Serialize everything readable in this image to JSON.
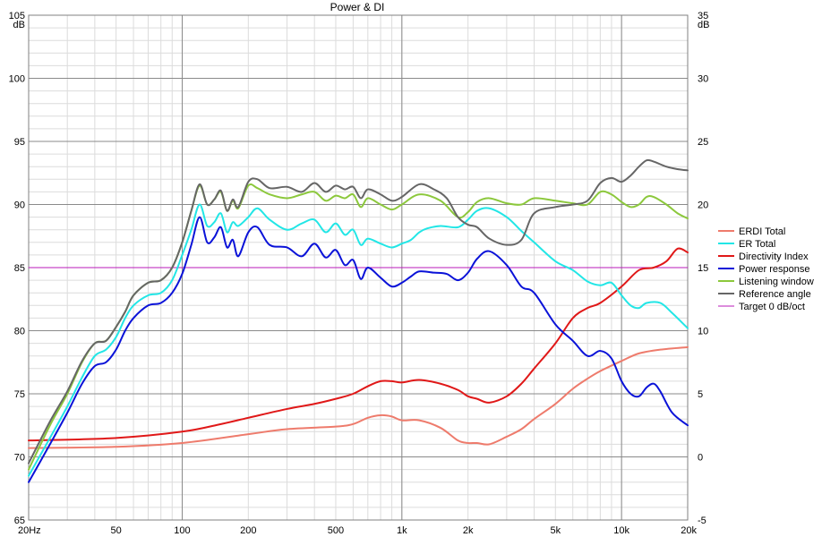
{
  "chart_data": {
    "type": "line",
    "title": "Power & DI",
    "x_scale": "log",
    "xlim": [
      20,
      20000
    ],
    "x_ticks": [
      {
        "value": 20,
        "label": "20Hz"
      },
      {
        "value": 50,
        "label": "50"
      },
      {
        "value": 100,
        "label": "100"
      },
      {
        "value": 200,
        "label": "200"
      },
      {
        "value": 500,
        "label": "500"
      },
      {
        "value": 1000,
        "label": "1k"
      },
      {
        "value": 2000,
        "label": "2k"
      },
      {
        "value": 5000,
        "label": "5k"
      },
      {
        "value": 10000,
        "label": "10k"
      },
      {
        "value": 20000,
        "label": "20k"
      }
    ],
    "left_axis": {
      "unit": "dB",
      "ylim": [
        65,
        105
      ],
      "ticks": [
        65,
        70,
        75,
        80,
        85,
        90,
        95,
        100,
        105
      ]
    },
    "right_axis": {
      "unit": "dB",
      "ylim": [
        -5,
        35
      ],
      "ticks": [
        -5,
        0,
        5,
        10,
        15,
        20,
        25,
        30,
        35
      ]
    },
    "grid": true,
    "legend_position": "right",
    "series": [
      {
        "name": "ERDI Total",
        "color": "#ee7b6c",
        "axis": "right",
        "points": [
          [
            20,
            0.7
          ],
          [
            50,
            0.8
          ],
          [
            100,
            1.1
          ],
          [
            200,
            1.8
          ],
          [
            300,
            2.2
          ],
          [
            500,
            2.4
          ],
          [
            600,
            2.6
          ],
          [
            700,
            3.1
          ],
          [
            800,
            3.3
          ],
          [
            900,
            3.2
          ],
          [
            1000,
            2.9
          ],
          [
            1200,
            2.9
          ],
          [
            1500,
            2.3
          ],
          [
            1800,
            1.3
          ],
          [
            2000,
            1.1
          ],
          [
            2200,
            1.1
          ],
          [
            2500,
            1.0
          ],
          [
            3000,
            1.6
          ],
          [
            3500,
            2.2
          ],
          [
            4000,
            3.0
          ],
          [
            5000,
            4.2
          ],
          [
            6000,
            5.4
          ],
          [
            7000,
            6.2
          ],
          [
            8000,
            6.8
          ],
          [
            10000,
            7.6
          ],
          [
            12000,
            8.2
          ],
          [
            15000,
            8.5
          ],
          [
            20000,
            8.7
          ]
        ]
      },
      {
        "name": "ER Total",
        "color": "#22e6e6",
        "axis": "left",
        "points": [
          [
            20,
            68.5
          ],
          [
            25,
            71.5
          ],
          [
            30,
            74
          ],
          [
            35,
            76.3
          ],
          [
            40,
            78
          ],
          [
            45,
            78.5
          ],
          [
            50,
            79.5
          ],
          [
            55,
            81
          ],
          [
            60,
            82
          ],
          [
            70,
            82.8
          ],
          [
            80,
            83.0
          ],
          [
            90,
            84.0
          ],
          [
            100,
            86
          ],
          [
            110,
            88
          ],
          [
            120,
            90.0
          ],
          [
            130,
            88.3
          ],
          [
            140,
            88.6
          ],
          [
            150,
            89.3
          ],
          [
            160,
            87.8
          ],
          [
            170,
            88.6
          ],
          [
            180,
            88.3
          ],
          [
            200,
            89.0
          ],
          [
            220,
            89.7
          ],
          [
            250,
            88.8
          ],
          [
            300,
            88.0
          ],
          [
            350,
            88.5
          ],
          [
            400,
            88.8
          ],
          [
            450,
            87.8
          ],
          [
            500,
            88.5
          ],
          [
            550,
            87.6
          ],
          [
            600,
            88.0
          ],
          [
            650,
            86.8
          ],
          [
            700,
            87.3
          ],
          [
            800,
            86.9
          ],
          [
            900,
            86.6
          ],
          [
            1000,
            86.9
          ],
          [
            1100,
            87.2
          ],
          [
            1200,
            87.8
          ],
          [
            1300,
            88.1
          ],
          [
            1500,
            88.3
          ],
          [
            1800,
            88.2
          ],
          [
            2000,
            88.8
          ],
          [
            2200,
            89.5
          ],
          [
            2500,
            89.7
          ],
          [
            3000,
            89.0
          ],
          [
            3500,
            87.9
          ],
          [
            4000,
            87.0
          ],
          [
            5000,
            85.5
          ],
          [
            6000,
            84.8
          ],
          [
            7000,
            83.9
          ],
          [
            8000,
            83.6
          ],
          [
            9000,
            83.8
          ],
          [
            10000,
            82.8
          ],
          [
            11000,
            82.0
          ],
          [
            12000,
            81.8
          ],
          [
            13000,
            82.2
          ],
          [
            15000,
            82.2
          ],
          [
            17000,
            81.4
          ],
          [
            20000,
            80.2
          ]
        ]
      },
      {
        "name": "Directivity Index",
        "color": "#e01818",
        "axis": "right",
        "points": [
          [
            20,
            1.3
          ],
          [
            50,
            1.5
          ],
          [
            100,
            2.0
          ],
          [
            150,
            2.6
          ],
          [
            200,
            3.1
          ],
          [
            300,
            3.8
          ],
          [
            400,
            4.2
          ],
          [
            500,
            4.6
          ],
          [
            600,
            5.0
          ],
          [
            700,
            5.6
          ],
          [
            800,
            6.0
          ],
          [
            900,
            6.0
          ],
          [
            1000,
            5.9
          ],
          [
            1200,
            6.1
          ],
          [
            1500,
            5.8
          ],
          [
            1800,
            5.3
          ],
          [
            2000,
            4.8
          ],
          [
            2200,
            4.6
          ],
          [
            2500,
            4.3
          ],
          [
            3000,
            4.8
          ],
          [
            3500,
            5.8
          ],
          [
            4000,
            7.0
          ],
          [
            5000,
            9.0
          ],
          [
            6000,
            11.0
          ],
          [
            7000,
            11.8
          ],
          [
            8000,
            12.2
          ],
          [
            10000,
            13.5
          ],
          [
            12000,
            14.8
          ],
          [
            14000,
            15.0
          ],
          [
            16000,
            15.5
          ],
          [
            18000,
            16.5
          ],
          [
            20000,
            16.2
          ]
        ]
      },
      {
        "name": "Power response",
        "color": "#0a12d8",
        "axis": "left",
        "points": [
          [
            20,
            68.0
          ],
          [
            25,
            71.0
          ],
          [
            30,
            73.5
          ],
          [
            35,
            75.8
          ],
          [
            40,
            77.2
          ],
          [
            45,
            77.5
          ],
          [
            50,
            78.5
          ],
          [
            55,
            80.0
          ],
          [
            60,
            81.0
          ],
          [
            70,
            82.0
          ],
          [
            80,
            82.2
          ],
          [
            90,
            83.0
          ],
          [
            100,
            84.5
          ],
          [
            110,
            86.8
          ],
          [
            120,
            89.0
          ],
          [
            130,
            87.0
          ],
          [
            140,
            87.4
          ],
          [
            150,
            88.2
          ],
          [
            160,
            86.6
          ],
          [
            170,
            87.2
          ],
          [
            180,
            85.9
          ],
          [
            200,
            87.8
          ],
          [
            220,
            88.2
          ],
          [
            250,
            86.8
          ],
          [
            300,
            86.6
          ],
          [
            350,
            85.9
          ],
          [
            400,
            86.9
          ],
          [
            450,
            85.8
          ],
          [
            500,
            86.4
          ],
          [
            550,
            85.2
          ],
          [
            600,
            85.6
          ],
          [
            650,
            84.1
          ],
          [
            700,
            85.0
          ],
          [
            800,
            84.2
          ],
          [
            900,
            83.5
          ],
          [
            1000,
            83.8
          ],
          [
            1100,
            84.3
          ],
          [
            1200,
            84.7
          ],
          [
            1400,
            84.6
          ],
          [
            1600,
            84.5
          ],
          [
            1800,
            84.0
          ],
          [
            2000,
            84.6
          ],
          [
            2200,
            85.7
          ],
          [
            2500,
            86.3
          ],
          [
            3000,
            85.2
          ],
          [
            3500,
            83.5
          ],
          [
            4000,
            83.0
          ],
          [
            5000,
            80.5
          ],
          [
            6000,
            79.2
          ],
          [
            7000,
            78.0
          ],
          [
            8000,
            78.4
          ],
          [
            9000,
            77.8
          ],
          [
            10000,
            76.0
          ],
          [
            11000,
            75.0
          ],
          [
            12000,
            74.8
          ],
          [
            13000,
            75.5
          ],
          [
            14000,
            75.8
          ],
          [
            15000,
            75.2
          ],
          [
            17000,
            73.5
          ],
          [
            20000,
            72.5
          ]
        ]
      },
      {
        "name": "Listening window",
        "color": "#8cc83c",
        "axis": "left",
        "points": [
          [
            20,
            69.0
          ],
          [
            25,
            72.5
          ],
          [
            30,
            75.0
          ],
          [
            35,
            77.5
          ],
          [
            40,
            79.0
          ],
          [
            45,
            79.2
          ],
          [
            50,
            80.3
          ],
          [
            55,
            81.5
          ],
          [
            60,
            82.8
          ],
          [
            70,
            83.8
          ],
          [
            80,
            84.0
          ],
          [
            90,
            85.0
          ],
          [
            100,
            87.0
          ],
          [
            110,
            89.5
          ],
          [
            120,
            91.5
          ],
          [
            130,
            90.0
          ],
          [
            140,
            90.4
          ],
          [
            150,
            91.0
          ],
          [
            160,
            89.5
          ],
          [
            170,
            90.3
          ],
          [
            180,
            89.7
          ],
          [
            200,
            91.5
          ],
          [
            220,
            91.3
          ],
          [
            250,
            90.8
          ],
          [
            300,
            90.5
          ],
          [
            350,
            90.8
          ],
          [
            400,
            91.0
          ],
          [
            450,
            90.3
          ],
          [
            500,
            90.7
          ],
          [
            550,
            90.5
          ],
          [
            600,
            90.8
          ],
          [
            650,
            89.8
          ],
          [
            700,
            90.5
          ],
          [
            800,
            90.0
          ],
          [
            900,
            89.6
          ],
          [
            1000,
            90.0
          ],
          [
            1200,
            90.8
          ],
          [
            1500,
            90.3
          ],
          [
            1800,
            89.0
          ],
          [
            2000,
            89.4
          ],
          [
            2200,
            90.2
          ],
          [
            2500,
            90.5
          ],
          [
            3000,
            90.1
          ],
          [
            3500,
            90.0
          ],
          [
            4000,
            90.5
          ],
          [
            5000,
            90.3
          ],
          [
            6000,
            90.1
          ],
          [
            7000,
            90.0
          ],
          [
            8000,
            91.0
          ],
          [
            9000,
            90.8
          ],
          [
            10000,
            90.2
          ],
          [
            11000,
            89.8
          ],
          [
            12000,
            90.0
          ],
          [
            13000,
            90.6
          ],
          [
            14000,
            90.6
          ],
          [
            16000,
            90.0
          ],
          [
            18000,
            89.3
          ],
          [
            20000,
            88.9
          ]
        ]
      },
      {
        "name": "Reference angle",
        "color": "#666666",
        "axis": "left",
        "points": [
          [
            20,
            69.5
          ],
          [
            25,
            72.8
          ],
          [
            30,
            75.2
          ],
          [
            35,
            77.6
          ],
          [
            40,
            79.0
          ],
          [
            45,
            79.2
          ],
          [
            50,
            80.3
          ],
          [
            55,
            81.5
          ],
          [
            60,
            82.8
          ],
          [
            70,
            83.8
          ],
          [
            80,
            84.0
          ],
          [
            90,
            85.0
          ],
          [
            100,
            87.0
          ],
          [
            110,
            89.5
          ],
          [
            120,
            91.6
          ],
          [
            130,
            90.0
          ],
          [
            140,
            90.4
          ],
          [
            150,
            91.1
          ],
          [
            160,
            89.5
          ],
          [
            170,
            90.4
          ],
          [
            180,
            89.8
          ],
          [
            200,
            91.8
          ],
          [
            220,
            92.0
          ],
          [
            250,
            91.3
          ],
          [
            300,
            91.4
          ],
          [
            350,
            91.0
          ],
          [
            400,
            91.7
          ],
          [
            450,
            91.0
          ],
          [
            500,
            91.5
          ],
          [
            550,
            91.2
          ],
          [
            600,
            91.4
          ],
          [
            650,
            90.5
          ],
          [
            700,
            91.2
          ],
          [
            800,
            90.8
          ],
          [
            900,
            90.3
          ],
          [
            1000,
            90.6
          ],
          [
            1200,
            91.6
          ],
          [
            1400,
            91.2
          ],
          [
            1600,
            90.5
          ],
          [
            1800,
            89.0
          ],
          [
            2000,
            88.4
          ],
          [
            2200,
            88.2
          ],
          [
            2500,
            87.3
          ],
          [
            3000,
            86.8
          ],
          [
            3500,
            87.2
          ],
          [
            4000,
            89.3
          ],
          [
            5000,
            89.8
          ],
          [
            6000,
            90.0
          ],
          [
            7000,
            90.3
          ],
          [
            8000,
            91.7
          ],
          [
            9000,
            92.1
          ],
          [
            10000,
            91.8
          ],
          [
            11000,
            92.3
          ],
          [
            12000,
            93.0
          ],
          [
            13000,
            93.5
          ],
          [
            14000,
            93.4
          ],
          [
            16000,
            93.0
          ],
          [
            18000,
            92.8
          ],
          [
            20000,
            92.7
          ]
        ]
      },
      {
        "name": "Target 0 dB/oct",
        "color": "#b81ab8",
        "axis": "left",
        "points": [
          [
            20,
            85
          ],
          [
            20000,
            85
          ]
        ]
      }
    ]
  }
}
